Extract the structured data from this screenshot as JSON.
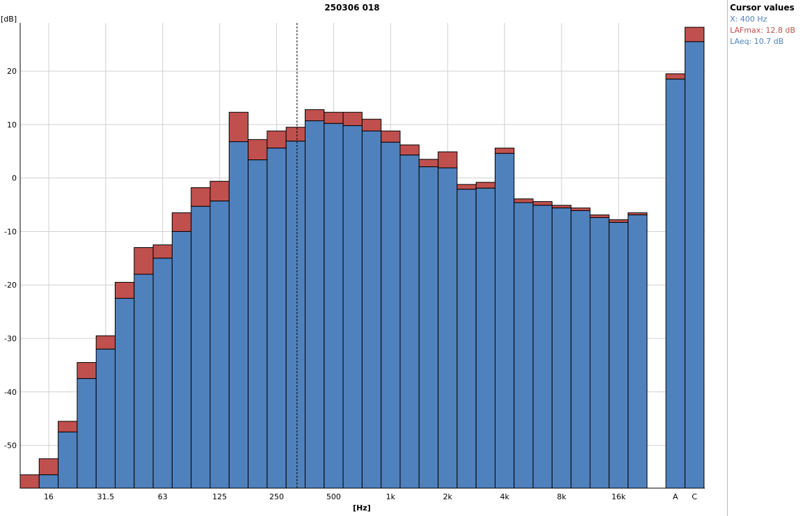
{
  "chart_data": {
    "type": "bar",
    "title": "250306 018",
    "xlabel": "[Hz]",
    "ylabel": "[dB]",
    "ylim": [
      -58,
      29
    ],
    "yticks": [
      20,
      10,
      0,
      -10,
      -20,
      -30,
      -40,
      -50
    ],
    "grid": true,
    "x_tick_labels": [
      "16",
      "31.5",
      "63",
      "125",
      "250",
      "500",
      "1k",
      "2k",
      "4k",
      "8k",
      "16k"
    ],
    "categories": [
      "12.5",
      "16",
      "20",
      "25",
      "31.5",
      "40",
      "50",
      "63",
      "80",
      "100",
      "125",
      "160",
      "200",
      "250",
      "315",
      "400",
      "500",
      "630",
      "800",
      "1k",
      "1.25k",
      "1.6k",
      "2k",
      "2.5k",
      "3.15k",
      "4k",
      "5k",
      "6.3k",
      "8k",
      "10k",
      "12.5k",
      "16k",
      "20k"
    ],
    "series": [
      {
        "name": "LAFmax",
        "color": "#c0504d",
        "values": [
          -55.5,
          -52.5,
          -45.5,
          -34.5,
          -29.5,
          -19.5,
          -13,
          -12.5,
          -6.5,
          -1.8,
          -0.6,
          12.3,
          7.2,
          8.8,
          9.5,
          12.8,
          12.3,
          12.3,
          11,
          8.8,
          6.2,
          3.5,
          4.9,
          -1.2,
          -0.8,
          5.6,
          -3.9,
          -4.4,
          -5.1,
          -5.6,
          -6.9,
          -7.8,
          -6.5
        ]
      },
      {
        "name": "LAeq",
        "color": "#4f81bd",
        "values": [
          -58,
          -55.5,
          -47.5,
          -37.5,
          -32,
          -22.5,
          -18,
          -15,
          -10,
          -5.3,
          -4.3,
          6.8,
          3.4,
          5.6,
          6.9,
          10.7,
          10.2,
          9.8,
          8.8,
          6.7,
          4.3,
          2.1,
          1.9,
          -2.1,
          -1.9,
          4.6,
          -4.6,
          -5.1,
          -5.6,
          -6.1,
          -7.4,
          -8.3,
          -6.9
        ]
      }
    ],
    "totals": {
      "categories": [
        "A",
        "C"
      ],
      "LAFmax": [
        19.5,
        28.2
      ],
      "LAeq": [
        18.5,
        25.5
      ]
    },
    "cursor_category": "400"
  },
  "cursor_panel": {
    "title": "Cursor values",
    "x_text": "X: 400 Hz",
    "lafmax_text": "LAFmax: 12.8 dB",
    "laeq_text": "LAeq: 10.7 dB",
    "x_color": "#4f81bd",
    "lafmax_color": "#c0504d",
    "laeq_color": "#4f81bd"
  }
}
